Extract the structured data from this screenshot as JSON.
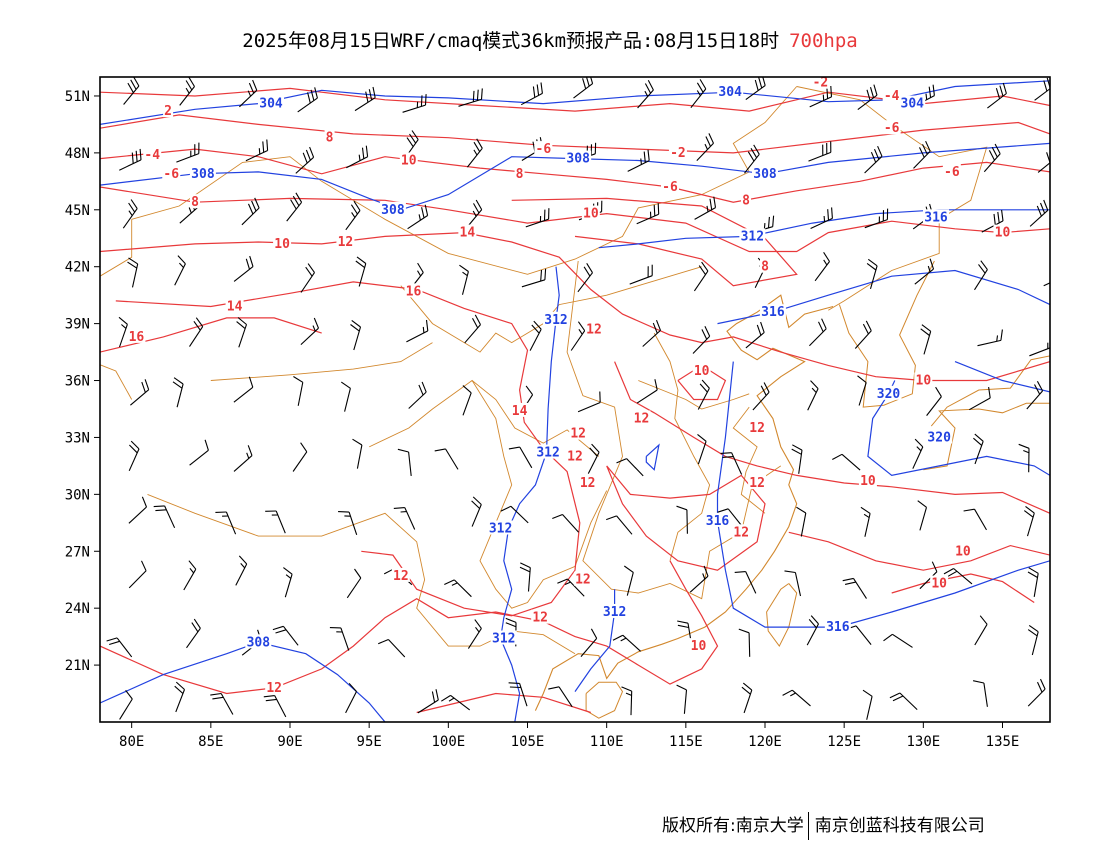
{
  "header": {
    "title_main": "2025年08月15日WRF/cmaq模式36km预报产品:08月15日18时",
    "title_level": "700hpa"
  },
  "map": {
    "lon_min": 78,
    "lon_max": 138,
    "lat_min": 18,
    "lat_max": 52,
    "lat_ticks": [
      {
        "value": 51,
        "label": "51N"
      },
      {
        "value": 48,
        "label": "48N"
      },
      {
        "value": 45,
        "label": "45N"
      },
      {
        "value": 42,
        "label": "42N"
      },
      {
        "value": 39,
        "label": "39N"
      },
      {
        "value": 36,
        "label": "36N"
      },
      {
        "value": 33,
        "label": "33N"
      },
      {
        "value": 30,
        "label": "30N"
      },
      {
        "value": 27,
        "label": "27N"
      },
      {
        "value": 24,
        "label": "24N"
      },
      {
        "value": 21,
        "label": "21N"
      }
    ],
    "lon_ticks": [
      {
        "value": 80,
        "label": "80E"
      },
      {
        "value": 85,
        "label": "85E"
      },
      {
        "value": 90,
        "label": "90E"
      },
      {
        "value": 95,
        "label": "95E"
      },
      {
        "value": 100,
        "label": "100E"
      },
      {
        "value": 105,
        "label": "105E"
      },
      {
        "value": 110,
        "label": "110E"
      },
      {
        "value": 115,
        "label": "115E"
      },
      {
        "value": 120,
        "label": "120E"
      },
      {
        "value": 125,
        "label": "125E"
      },
      {
        "value": 130,
        "label": "130E"
      },
      {
        "value": 135,
        "label": "135E"
      }
    ],
    "colors": {
      "frame": "#000000",
      "temperature": "#e8393b",
      "geopotential": "#2242e0",
      "border": "#d2882e",
      "wind": "#000000"
    },
    "temperature_labels": [
      {
        "text": "2",
        "lon": 82.3,
        "lat": 50.2
      },
      {
        "text": "-2",
        "lon": 114.5,
        "lat": 48.0
      },
      {
        "text": "-2",
        "lon": 123.5,
        "lat": 51.7
      },
      {
        "text": "-4",
        "lon": 81.3,
        "lat": 47.9
      },
      {
        "text": "-4",
        "lon": 128.0,
        "lat": 51.0
      },
      {
        "text": "-6",
        "lon": 82.5,
        "lat": 46.9
      },
      {
        "text": "-6",
        "lon": 106.0,
        "lat": 48.2
      },
      {
        "text": "-6",
        "lon": 114.0,
        "lat": 46.2
      },
      {
        "text": "-6",
        "lon": 128.0,
        "lat": 49.3
      },
      {
        "text": "-6",
        "lon": 131.8,
        "lat": 47.0
      },
      {
        "text": "8",
        "lon": 84.0,
        "lat": 45.4
      },
      {
        "text": "8",
        "lon": 92.5,
        "lat": 48.8
      },
      {
        "text": "8",
        "lon": 104.5,
        "lat": 46.9
      },
      {
        "text": "8",
        "lon": 118.8,
        "lat": 45.5
      },
      {
        "text": "8",
        "lon": 120.0,
        "lat": 42.0
      },
      {
        "text": "10",
        "lon": 97.5,
        "lat": 47.6
      },
      {
        "text": "10",
        "lon": 109.0,
        "lat": 44.8
      },
      {
        "text": "10",
        "lon": 89.5,
        "lat": 43.2
      },
      {
        "text": "10",
        "lon": 116.0,
        "lat": 36.5
      },
      {
        "text": "10",
        "lon": 130.0,
        "lat": 36.0
      },
      {
        "text": "10",
        "lon": 135.0,
        "lat": 43.8
      },
      {
        "text": "10",
        "lon": 126.5,
        "lat": 30.7
      },
      {
        "text": "10",
        "lon": 132.5,
        "lat": 27.0
      },
      {
        "text": "10",
        "lon": 131.0,
        "lat": 25.3
      },
      {
        "text": "10",
        "lon": 115.8,
        "lat": 22.0
      },
      {
        "text": "12",
        "lon": 93.5,
        "lat": 43.3
      },
      {
        "text": "12",
        "lon": 109.2,
        "lat": 38.7
      },
      {
        "text": "12",
        "lon": 108.2,
        "lat": 33.2
      },
      {
        "text": "12",
        "lon": 112.2,
        "lat": 34.0
      },
      {
        "text": "12",
        "lon": 119.5,
        "lat": 33.5
      },
      {
        "text": "12",
        "lon": 108.0,
        "lat": 32.0
      },
      {
        "text": "12",
        "lon": 108.8,
        "lat": 30.6
      },
      {
        "text": "12",
        "lon": 119.5,
        "lat": 30.6
      },
      {
        "text": "12",
        "lon": 118.5,
        "lat": 28.0
      },
      {
        "text": "12",
        "lon": 108.5,
        "lat": 25.5
      },
      {
        "text": "12",
        "lon": 97.0,
        "lat": 25.7
      },
      {
        "text": "12",
        "lon": 105.8,
        "lat": 23.5
      },
      {
        "text": "12",
        "lon": 89.0,
        "lat": 19.8
      },
      {
        "text": "14",
        "lon": 101.2,
        "lat": 43.8
      },
      {
        "text": "14",
        "lon": 86.5,
        "lat": 39.9
      },
      {
        "text": "14",
        "lon": 104.5,
        "lat": 34.4
      },
      {
        "text": "16",
        "lon": 97.8,
        "lat": 40.7
      },
      {
        "text": "16",
        "lon": 80.3,
        "lat": 38.3
      }
    ],
    "geopotential_labels": [
      {
        "text": "304",
        "lon": 88.8,
        "lat": 50.6
      },
      {
        "text": "304",
        "lon": 117.8,
        "lat": 51.2
      },
      {
        "text": "304",
        "lon": 129.3,
        "lat": 50.6
      },
      {
        "text": "308",
        "lon": 84.5,
        "lat": 46.9
      },
      {
        "text": "308",
        "lon": 108.2,
        "lat": 47.7
      },
      {
        "text": "308",
        "lon": 120.0,
        "lat": 46.9
      },
      {
        "text": "308",
        "lon": 96.5,
        "lat": 45.0
      },
      {
        "text": "308",
        "lon": 88.0,
        "lat": 22.2
      },
      {
        "text": "312",
        "lon": 119.2,
        "lat": 43.6
      },
      {
        "text": "312",
        "lon": 106.8,
        "lat": 39.2
      },
      {
        "text": "312",
        "lon": 106.3,
        "lat": 32.2
      },
      {
        "text": "312",
        "lon": 103.3,
        "lat": 28.2
      },
      {
        "text": "312",
        "lon": 110.5,
        "lat": 23.8
      },
      {
        "text": "312",
        "lon": 103.5,
        "lat": 22.4
      },
      {
        "text": "316",
        "lon": 130.8,
        "lat": 44.6
      },
      {
        "text": "316",
        "lon": 120.5,
        "lat": 39.6
      },
      {
        "text": "316",
        "lon": 117.0,
        "lat": 28.6
      },
      {
        "text": "316",
        "lon": 124.6,
        "lat": 23.0
      },
      {
        "text": "320",
        "lon": 127.8,
        "lat": 35.3
      },
      {
        "text": "320",
        "lon": 131.0,
        "lat": 33.0
      }
    ]
  },
  "footer": {
    "copyright": "版权所有:南京大学",
    "company": "南京创蓝科技有限公司"
  }
}
